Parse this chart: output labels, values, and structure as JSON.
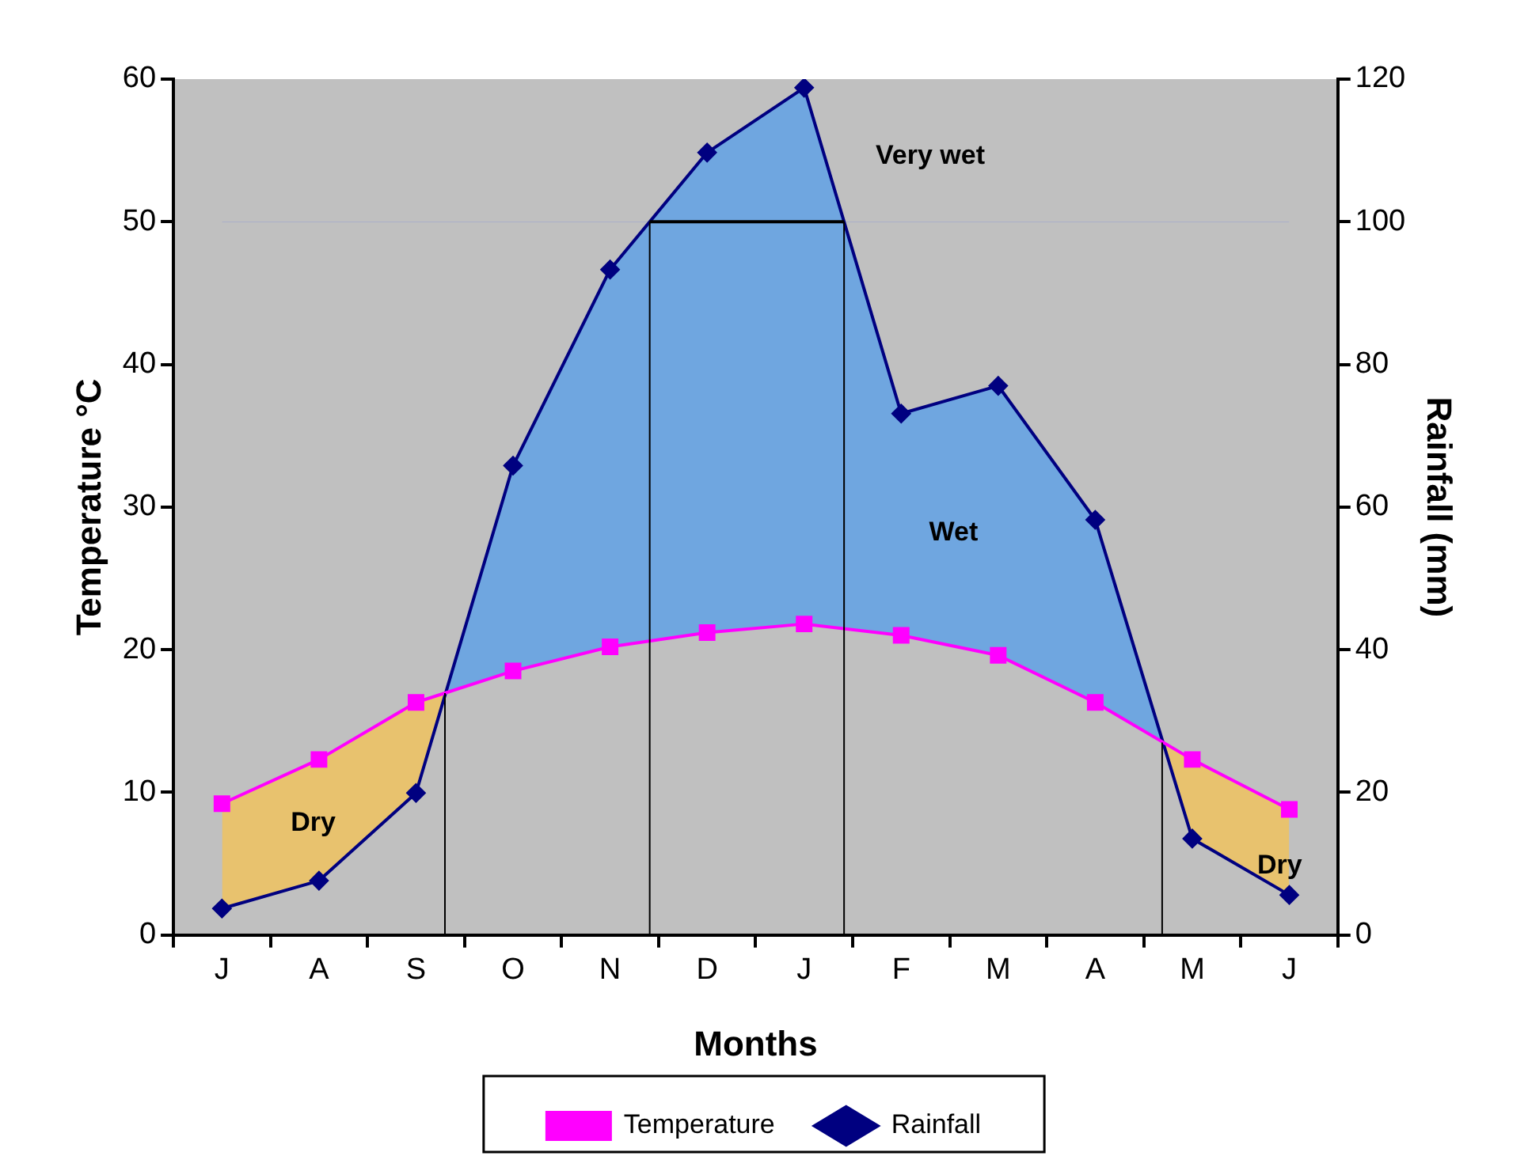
{
  "chart_data": {
    "type": "line",
    "xlabel": "Months",
    "ylabel": "Temperature °C",
    "y2label": "Rainfall (mm)",
    "categories": [
      "J",
      "A",
      "S",
      "O",
      "N",
      "D",
      "J",
      "F",
      "M",
      "A",
      "M",
      "J"
    ],
    "series": [
      {
        "name": "Temperature",
        "color": "#ff00ff",
        "marker": "square",
        "values": [
          9.2,
          12.3,
          16.3,
          18.5,
          20.2,
          21.2,
          21.8,
          21.0,
          19.6,
          16.3,
          12.3,
          8.8
        ]
      },
      {
        "name": "Rainfall",
        "color": "#000080",
        "marker": "diamond",
        "axis": "y2",
        "values": [
          3.7,
          7.6,
          19.9,
          65.8,
          93.3,
          109.7,
          118.8,
          73.1,
          77.0,
          58.2,
          13.5,
          5.6
        ]
      }
    ],
    "ylim": [
      0,
      60
    ],
    "yticks": [
      0,
      10,
      20,
      30,
      40,
      50,
      60
    ],
    "y2lim": [
      0,
      120
    ],
    "y2ticks": [
      0,
      20,
      40,
      60,
      80,
      100,
      120
    ],
    "ref_lines": [
      {
        "axis": "y2",
        "value": 100
      }
    ],
    "annotations": [
      "Dry",
      "Wet",
      "Very wet",
      "Dry"
    ],
    "grid": false,
    "legend": "bottom"
  }
}
